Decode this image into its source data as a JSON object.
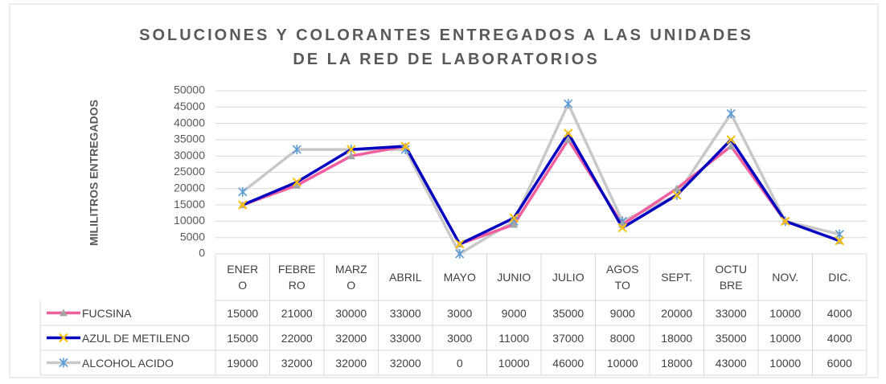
{
  "chart_data": {
    "type": "line",
    "title": "SOLUCIONES Y COLORANTES ENTREGADOS A LAS UNIDADES DE LA RED DE LABORATORIOS",
    "y_label": "MILILITROS ENTREGADOS",
    "categories": [
      "ENER\nO",
      "FEBRE\nRO",
      "MARZ\nO",
      "ABRIL",
      "MAYO",
      "JUNIO",
      "JULIO",
      "AGOS\nTO",
      "SEPT.",
      "OCTU\nBRE",
      "NOV.",
      "DIC."
    ],
    "series": [
      {
        "name": "FUCSINA",
        "color": "#f0609e",
        "marker": "triangle",
        "marker_color": "#a5a5a5",
        "values": [
          15000,
          21000,
          30000,
          33000,
          3000,
          9000,
          35000,
          9000,
          20000,
          33000,
          10000,
          4000
        ]
      },
      {
        "name": "AZUL DE METILENO",
        "color": "#0000c0",
        "marker": "x",
        "marker_color": "#ffc000",
        "values": [
          15000,
          22000,
          32000,
          33000,
          3000,
          11000,
          37000,
          8000,
          18000,
          35000,
          10000,
          4000
        ]
      },
      {
        "name": "ALCOHOL ACIDO",
        "color": "#c8c8c8",
        "marker": "star",
        "marker_color": "#5b9bd5",
        "values": [
          19000,
          32000,
          32000,
          32000,
          0,
          10000,
          46000,
          10000,
          18000,
          43000,
          10000,
          6000
        ]
      }
    ],
    "ylim": [
      0,
      50000
    ],
    "yticks": [
      0,
      5000,
      10000,
      15000,
      20000,
      25000,
      30000,
      35000,
      40000,
      45000,
      50000
    ],
    "grid": true,
    "data_table": true
  }
}
